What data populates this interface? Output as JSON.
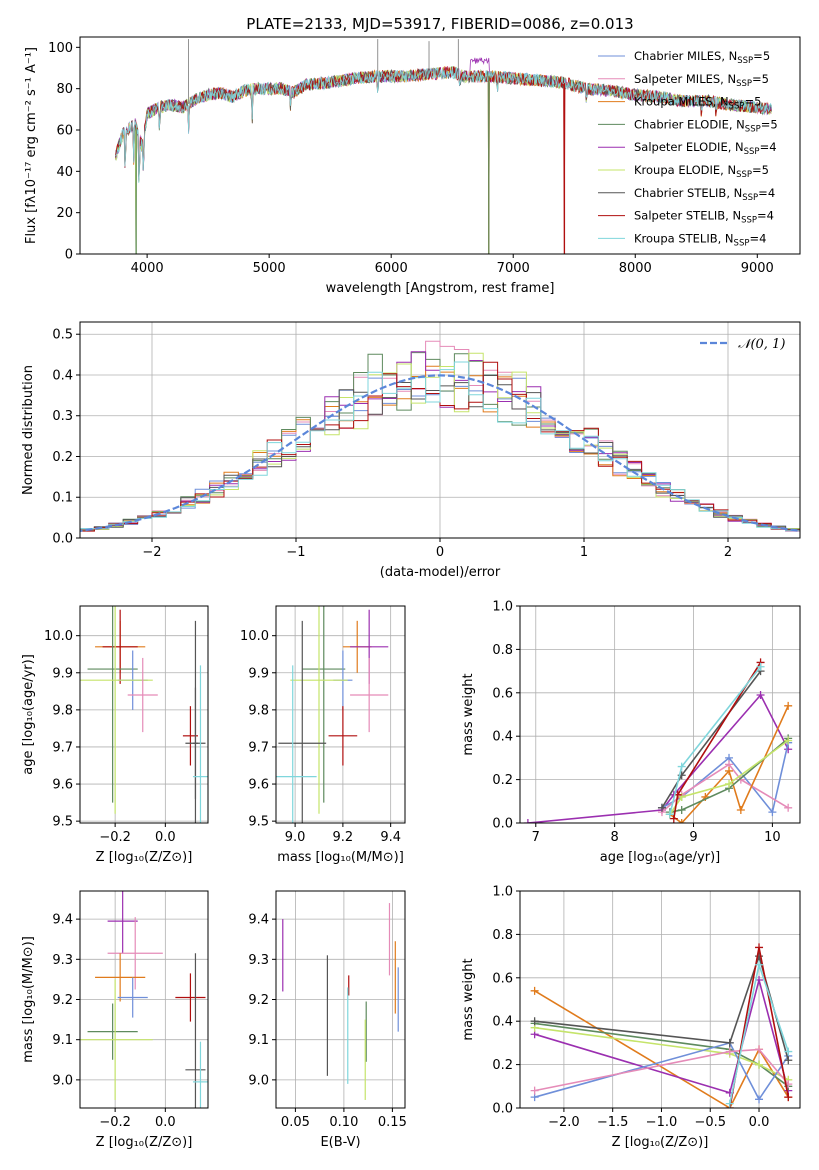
{
  "colors": {
    "Chabrier MILES": "#6f8fd9",
    "Salpeter MILES": "#e58bb8",
    "Kroupa MILES": "#e07b1c",
    "Chabrier ELODIE": "#5e8a5e",
    "Salpeter ELODIE": "#9b2fb0",
    "Kroupa ELODIE": "#c5e46a",
    "Chabrier STELIB": "#555555",
    "Salpeter STELIB": "#b00f0f",
    "Kroupa STELIB": "#7fd6dc"
  },
  "chart_data": [
    {
      "id": "spectrum",
      "type": "line",
      "title": "PLATE=2133, MJD=53917, FIBERID=0086, z=0.013",
      "xlabel": "wavelength [Angstrom, rest frame]",
      "ylabel": "Flux [fλ10⁻¹⁷ erg cm⁻² s⁻¹ A⁻¹]",
      "xlim": [
        3450,
        9350
      ],
      "ylim": [
        0,
        105
      ],
      "xticks": [
        4000,
        5000,
        6000,
        7000,
        8000,
        9000
      ],
      "yticks": [
        0,
        20,
        40,
        60,
        80,
        100
      ],
      "grid": false,
      "legend_position": "top-right",
      "legend": [
        {
          "name": "Chabrier MILES",
          "label": "Chabrier MILES, N",
          "nssp": "5"
        },
        {
          "name": "Salpeter MILES",
          "label": "Salpeter MILES, N",
          "nssp": "5"
        },
        {
          "name": "Kroupa MILES",
          "label": "Kroupa MILES, N",
          "nssp": "5"
        },
        {
          "name": "Chabrier ELODIE",
          "label": "Chabrier ELODIE, N",
          "nssp": "5"
        },
        {
          "name": "Salpeter ELODIE",
          "label": "Salpeter ELODIE, N",
          "nssp": "4"
        },
        {
          "name": "Kroupa ELODIE",
          "label": "Kroupa ELODIE, N",
          "nssp": "5"
        },
        {
          "name": "Chabrier STELIB",
          "label": "Chabrier STELIB, N",
          "nssp": "4"
        },
        {
          "name": "Salpeter STELIB",
          "label": "Salpeter STELIB, N",
          "nssp": "4"
        },
        {
          "name": "Kroupa STELIB",
          "label": "Kroupa STELIB, N",
          "nssp": "4"
        }
      ],
      "legend_subscript": "SSP",
      "continuum": [
        [
          3740,
          47
        ],
        [
          3800,
          58
        ],
        [
          3900,
          63
        ],
        [
          3960,
          52
        ],
        [
          4000,
          68
        ],
        [
          4100,
          71
        ],
        [
          4200,
          72
        ],
        [
          4300,
          71
        ],
        [
          4400,
          75
        ],
        [
          4500,
          77
        ],
        [
          4600,
          78
        ],
        [
          4700,
          76
        ],
        [
          4800,
          79
        ],
        [
          4900,
          80
        ],
        [
          5000,
          80
        ],
        [
          5100,
          80
        ],
        [
          5200,
          78
        ],
        [
          5300,
          82
        ],
        [
          5500,
          83
        ],
        [
          5700,
          85
        ],
        [
          5900,
          86
        ],
        [
          6100,
          86
        ],
        [
          6300,
          87
        ],
        [
          6500,
          88
        ],
        [
          6600,
          86
        ],
        [
          6800,
          86
        ],
        [
          7000,
          85
        ],
        [
          7200,
          84
        ],
        [
          7400,
          83
        ],
        [
          7600,
          80
        ],
        [
          7800,
          79
        ],
        [
          8000,
          77
        ],
        [
          8200,
          76
        ],
        [
          8400,
          74
        ],
        [
          8600,
          74
        ],
        [
          8800,
          72
        ],
        [
          9000,
          71
        ],
        [
          9100,
          70
        ]
      ],
      "dips": [
        [
          3820,
          37
        ],
        [
          3890,
          45
        ],
        [
          3934,
          28
        ],
        [
          3970,
          35
        ],
        [
          4102,
          58
        ],
        [
          4340,
          60
        ],
        [
          4861,
          62
        ],
        [
          5175,
          70
        ],
        [
          5890,
          76
        ],
        [
          6563,
          80
        ],
        [
          6870,
          78
        ],
        [
          7600,
          72
        ],
        [
          8542,
          66
        ],
        [
          8662,
          66
        ]
      ],
      "spikes": [
        [
          4340,
          104
        ],
        [
          5890,
          104
        ],
        [
          6310,
          103
        ],
        [
          6550,
          104
        ]
      ],
      "drops": [
        {
          "name": "Kroupa ELODIE",
          "x": 3910,
          "y": 0
        },
        {
          "name": "Chabrier ELODIE",
          "x": 3910,
          "y": 0
        },
        {
          "name": "Kroupa MILES",
          "x": 6800,
          "y": 0
        },
        {
          "name": "Chabrier ELODIE",
          "x": 6800,
          "y": 0
        },
        {
          "name": "Salpeter STELIB",
          "x": 7420,
          "y": 0
        }
      ],
      "hump": {
        "name": "Salpeter ELODIE",
        "x": [
          6650,
          6800
        ],
        "y": 95
      }
    },
    {
      "id": "residuals",
      "type": "histogram",
      "xlabel": "(data-model)/error",
      "ylabel": "Normed distribution",
      "xlim": [
        -2.5,
        2.5
      ],
      "ylim": [
        0,
        0.53
      ],
      "xticks": [
        -2,
        -1,
        0,
        1,
        2
      ],
      "yticks": [
        0.0,
        0.1,
        0.2,
        0.3,
        0.4,
        0.5
      ],
      "grid": true,
      "legend_position": "top-right",
      "legend_label": "𝒩(0, 1)",
      "normal_curve": {
        "mean": 0,
        "sigma": 1,
        "color": "#5b86d9"
      },
      "bin_width": 0.1,
      "series_peaks": [
        {
          "name": "Chabrier MILES",
          "peak": 0.47
        },
        {
          "name": "Salpeter MILES",
          "peak": 0.5
        },
        {
          "name": "Kroupa MILES",
          "peak": 0.43
        },
        {
          "name": "Chabrier ELODIE",
          "peak": 0.5
        },
        {
          "name": "Salpeter ELODIE",
          "peak": 0.46
        },
        {
          "name": "Kroupa ELODIE",
          "peak": 0.48
        },
        {
          "name": "Chabrier STELIB",
          "peak": 0.44
        },
        {
          "name": "Salpeter STELIB",
          "peak": 0.41
        },
        {
          "name": "Kroupa STELIB",
          "peak": 0.45
        }
      ]
    },
    {
      "id": "age-vs-Z",
      "type": "scatter",
      "xlabel": "Z [log₁₀(Z/Z⊙)]",
      "ylabel": "age  [log₁₀(age/yr)]",
      "xlim": [
        -0.34,
        0.17
      ],
      "ylim": [
        9.495,
        10.08
      ],
      "xticks": [
        -0.2,
        0.0
      ],
      "yticks": [
        9.5,
        9.6,
        9.7,
        9.8,
        9.9,
        10.0
      ],
      "grid": true,
      "points": [
        {
          "name": "Kroupa MILES",
          "x": -0.18,
          "y": 9.97,
          "xerr": 0.1,
          "yerr": 0.07
        },
        {
          "name": "Salpeter STELIB",
          "x": -0.18,
          "y": 9.97,
          "xerr": 0.07,
          "yerr": 0.1
        },
        {
          "name": "Chabrier ELODIE",
          "x": -0.21,
          "y": 9.91,
          "xerr": 0.1,
          "yerr": 0.36
        },
        {
          "name": "Chabrier MILES",
          "x": -0.13,
          "y": 9.88,
          "xerr": 0.06,
          "yerr": 0.08
        },
        {
          "name": "Kroupa ELODIE",
          "x": -0.2,
          "y": 9.88,
          "xerr": 0.15,
          "yerr": 0.36
        },
        {
          "name": "Salpeter MILES",
          "x": -0.09,
          "y": 9.84,
          "xerr": 0.06,
          "yerr": 0.1
        },
        {
          "name": "Salpeter STELIB",
          "x": 0.1,
          "y": 9.73,
          "xerr": 0.03,
          "yerr": 0.08
        },
        {
          "name": "Chabrier STELIB",
          "x": 0.12,
          "y": 9.71,
          "xerr": 0.04,
          "yerr": 0.15
        },
        {
          "name": "Chabrier STELIB",
          "x": 0.12,
          "y": 9.71,
          "xerr": 0.01,
          "yerr": 0.33
        },
        {
          "name": "Kroupa STELIB",
          "x": 0.14,
          "y": 9.62,
          "xerr": 0.03,
          "yerr": 0.3
        }
      ]
    },
    {
      "id": "age-vs-mass",
      "type": "scatter",
      "xlabel": "mass [log₁₀(M/M⊙)]",
      "ylabel": "",
      "xlim": [
        8.92,
        9.46
      ],
      "ylim": [
        9.495,
        10.08
      ],
      "xticks": [
        9.0,
        9.2,
        9.4
      ],
      "yticks": [
        9.5,
        9.6,
        9.7,
        9.8,
        9.9,
        10.0
      ],
      "grid": true,
      "points": [
        {
          "name": "Kroupa MILES",
          "x": 9.26,
          "y": 9.97,
          "xerr": 0.06,
          "yerr": 0.07
        },
        {
          "name": "Salpeter ELODIE",
          "x": 9.31,
          "y": 9.97,
          "xerr": 0.08,
          "yerr": 0.1
        },
        {
          "name": "Chabrier ELODIE",
          "x": 9.12,
          "y": 9.91,
          "xerr": 0.09,
          "yerr": 0.36
        },
        {
          "name": "Chabrier MILES",
          "x": 9.2,
          "y": 9.88,
          "xerr": 0.04,
          "yerr": 0.08
        },
        {
          "name": "Kroupa ELODIE",
          "x": 9.1,
          "y": 9.88,
          "xerr": 0.12,
          "yerr": 0.36
        },
        {
          "name": "Salpeter MILES",
          "x": 9.31,
          "y": 9.84,
          "xerr": 0.08,
          "yerr": 0.1
        },
        {
          "name": "Salpeter STELIB",
          "x": 9.2,
          "y": 9.73,
          "xerr": 0.06,
          "yerr": 0.08
        },
        {
          "name": "Chabrier STELIB",
          "x": 9.03,
          "y": 9.71,
          "xerr": 0.1,
          "yerr": 0.33
        },
        {
          "name": "Kroupa STELIB",
          "x": 8.99,
          "y": 9.62,
          "xerr": 0.1,
          "yerr": 0.3
        }
      ]
    },
    {
      "id": "mass-weight-vs-age",
      "type": "line",
      "xlabel": "age  [log₁₀(age/yr)]",
      "ylabel": "mass weight",
      "xlim": [
        6.8,
        10.35
      ],
      "ylim": [
        0,
        1
      ],
      "xticks": [
        7,
        8,
        9,
        10
      ],
      "yticks": [
        0.0,
        0.2,
        0.4,
        0.6,
        0.8,
        1.0
      ],
      "grid": true,
      "series": [
        {
          "name": "Salpeter ELODIE",
          "x": [
            6.9,
            8.6,
            8.75,
            9.85,
            10.2
          ],
          "y": [
            0.0,
            0.06,
            0.13,
            0.59,
            0.34
          ]
        },
        {
          "name": "Chabrier MILES",
          "x": [
            8.6,
            8.85,
            9.45,
            10.0,
            10.2
          ],
          "y": [
            0.07,
            0.12,
            0.3,
            0.05,
            0.37
          ]
        },
        {
          "name": "Salpeter MILES",
          "x": [
            8.6,
            8.85,
            9.45,
            9.6,
            10.2
          ],
          "y": [
            0.05,
            0.13,
            0.27,
            0.2,
            0.07
          ]
        },
        {
          "name": "Kroupa MILES",
          "x": [
            8.7,
            8.85,
            9.15,
            9.45,
            9.6,
            10.2
          ],
          "y": [
            0.04,
            0.0,
            0.12,
            0.24,
            0.06,
            0.54
          ]
        },
        {
          "name": "Chabrier ELODIE",
          "x": [
            8.7,
            8.85,
            9.45,
            10.2
          ],
          "y": [
            0.05,
            0.06,
            0.16,
            0.39
          ]
        },
        {
          "name": "Kroupa ELODIE",
          "x": [
            8.7,
            8.85,
            9.45,
            10.2
          ],
          "y": [
            0.04,
            0.12,
            0.18,
            0.38
          ]
        },
        {
          "name": "Chabrier STELIB",
          "x": [
            8.6,
            8.85,
            9.85
          ],
          "y": [
            0.07,
            0.22,
            0.7
          ]
        },
        {
          "name": "Salpeter STELIB",
          "x": [
            8.75,
            8.8,
            9.85
          ],
          "y": [
            0.02,
            0.13,
            0.74
          ]
        },
        {
          "name": "Kroupa STELIB",
          "x": [
            8.7,
            8.85,
            9.85
          ],
          "y": [
            0.04,
            0.26,
            0.72
          ]
        }
      ]
    },
    {
      "id": "mass-vs-Z",
      "type": "scatter",
      "xlabel": "Z [log₁₀(Z/Z⊙)]",
      "ylabel": "mass [log₁₀(M/M⊙)]",
      "xlim": [
        -0.34,
        0.17
      ],
      "ylim": [
        8.93,
        9.47
      ],
      "xticks": [
        -0.2,
        0.0
      ],
      "yticks": [
        9.0,
        9.1,
        9.2,
        9.3,
        9.4
      ],
      "grid": true,
      "points": [
        {
          "name": "Salpeter ELODIE",
          "x": -0.17,
          "y": 9.395,
          "xerr": 0.06,
          "yerr": 0.08
        },
        {
          "name": "Salpeter MILES",
          "x": -0.12,
          "y": 9.315,
          "xerr": 0.11,
          "yerr": 0.09
        },
        {
          "name": "Kroupa MILES",
          "x": -0.18,
          "y": 9.255,
          "xerr": 0.1,
          "yerr": 0.06
        },
        {
          "name": "Chabrier MILES",
          "x": -0.13,
          "y": 9.205,
          "xerr": 0.06,
          "yerr": 0.05
        },
        {
          "name": "Salpeter STELIB",
          "x": 0.1,
          "y": 9.205,
          "xerr": 0.06,
          "yerr": 0.06
        },
        {
          "name": "Chabrier ELODIE",
          "x": -0.21,
          "y": 9.12,
          "xerr": 0.1,
          "yerr": 0.07
        },
        {
          "name": "Kroupa ELODIE",
          "x": -0.2,
          "y": 9.1,
          "xerr": 0.15,
          "yerr": 0.15
        },
        {
          "name": "Chabrier STELIB",
          "x": 0.12,
          "y": 9.025,
          "xerr": 0.04,
          "yerr": 0.29
        },
        {
          "name": "Kroupa STELIB",
          "x": 0.14,
          "y": 8.995,
          "xerr": 0.03,
          "yerr": 0.1
        }
      ]
    },
    {
      "id": "mass-vs-ebv",
      "type": "scatter",
      "xlabel": "E(B-V)",
      "ylabel": "",
      "xlim": [
        0.03,
        0.163
      ],
      "ylim": [
        8.93,
        9.47
      ],
      "xticks": [
        0.05,
        0.1,
        0.15
      ],
      "yticks": [
        9.0,
        9.1,
        9.2,
        9.3,
        9.4
      ],
      "grid": true,
      "points": [
        {
          "name": "Salpeter ELODIE",
          "x": 0.037,
          "y": 9.31,
          "xerr": 0.0,
          "yerr": 0.09
        },
        {
          "name": "Chabrier STELIB",
          "x": 0.083,
          "y": 9.16,
          "xerr": 0.0,
          "yerr": 0.15
        },
        {
          "name": "Salpeter STELIB",
          "x": 0.105,
          "y": 9.235,
          "xerr": 0.0,
          "yerr": 0.025
        },
        {
          "name": "Kroupa STELIB",
          "x": 0.104,
          "y": 9.11,
          "xerr": 0.0,
          "yerr": 0.12
        },
        {
          "name": "Chabrier ELODIE",
          "x": 0.123,
          "y": 9.12,
          "xerr": 0.0,
          "yerr": 0.075
        },
        {
          "name": "Kroupa ELODIE",
          "x": 0.122,
          "y": 9.05,
          "xerr": 0.0,
          "yerr": 0.1
        },
        {
          "name": "Salpeter MILES",
          "x": 0.147,
          "y": 9.35,
          "xerr": 0.0,
          "yerr": 0.09
        },
        {
          "name": "Kroupa MILES",
          "x": 0.153,
          "y": 9.255,
          "xerr": 0.0,
          "yerr": 0.09
        },
        {
          "name": "Chabrier MILES",
          "x": 0.156,
          "y": 9.2,
          "xerr": 0.0,
          "yerr": 0.08
        }
      ]
    },
    {
      "id": "mass-weight-vs-Z",
      "type": "line",
      "xlabel": "Z [log₁₀(Z/Z⊙)]",
      "ylabel": "mass weight",
      "xlim": [
        -2.45,
        0.42
      ],
      "ylim": [
        0,
        1
      ],
      "xticks": [
        -2.0,
        -1.5,
        -1.0,
        -0.5,
        0.0
      ],
      "yticks": [
        0.0,
        0.2,
        0.4,
        0.6,
        0.8,
        1.0
      ],
      "grid": true,
      "series": [
        {
          "name": "Kroupa MILES",
          "x": [
            -2.3,
            -0.3,
            0.0,
            0.3
          ],
          "y": [
            0.54,
            0.0,
            0.27,
            0.05
          ]
        },
        {
          "name": "Salpeter ELODIE",
          "x": [
            -2.3,
            -0.3,
            0.0,
            0.3
          ],
          "y": [
            0.34,
            0.07,
            0.59,
            0.08
          ]
        },
        {
          "name": "Chabrier ELODIE",
          "x": [
            -2.3,
            -0.3,
            0.0,
            0.3
          ],
          "y": [
            0.39,
            0.27,
            0.2,
            0.1
          ]
        },
        {
          "name": "Kroupa ELODIE",
          "x": [
            -2.3,
            -0.3,
            0.0,
            0.3
          ],
          "y": [
            0.37,
            0.25,
            0.2,
            0.13
          ]
        },
        {
          "name": "Chabrier MILES",
          "x": [
            -2.3,
            -0.3,
            0.0,
            0.3
          ],
          "y": [
            0.05,
            0.3,
            0.04,
            0.24
          ]
        },
        {
          "name": "Salpeter MILES",
          "x": [
            -2.3,
            -0.3,
            0.0,
            0.3
          ],
          "y": [
            0.08,
            0.26,
            0.27,
            0.11
          ]
        },
        {
          "name": "Chabrier STELIB",
          "x": [
            -2.3,
            -0.3,
            0.0,
            0.3
          ],
          "y": [
            0.4,
            0.3,
            0.7,
            0.22
          ]
        },
        {
          "name": "Salpeter STELIB",
          "x": [
            -0.3,
            0.0,
            0.3
          ],
          "y": [
            0.0,
            0.74,
            0.05
          ]
        },
        {
          "name": "Kroupa STELIB",
          "x": [
            -0.3,
            0.0,
            0.3
          ],
          "y": [
            0.02,
            0.66,
            0.26
          ]
        }
      ]
    }
  ]
}
